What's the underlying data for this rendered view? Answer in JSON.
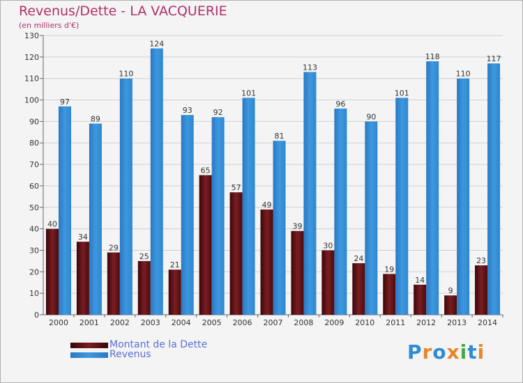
{
  "header": {
    "title": "Revenus/Dette - LA VACQUERIE",
    "subtitle": "(en milliers d'€)"
  },
  "logo": {
    "text": "Proxiti",
    "letters": [
      {
        "ch": "P",
        "color": "#2e8bd6"
      },
      {
        "ch": "r",
        "color": "#e8862a"
      },
      {
        "ch": "o",
        "color": "#2e8bd6"
      },
      {
        "ch": "x",
        "color": "#e8862a"
      },
      {
        "ch": "i",
        "color": "#45a845"
      },
      {
        "ch": "t",
        "color": "#2e8bd6"
      },
      {
        "ch": "i",
        "color": "#e8862a"
      }
    ]
  },
  "colors": {
    "debt": "#7a1e22",
    "revenue": "#3d98df",
    "axis_text": "#333333",
    "grid": "#d0d0d0"
  },
  "chart_data": {
    "type": "bar",
    "title": "Revenus/Dette - LA VACQUERIE",
    "subtitle": "(en milliers d'€)",
    "categories": [
      "2000",
      "2001",
      "2002",
      "2003",
      "2004",
      "2005",
      "2006",
      "2007",
      "2008",
      "2009",
      "2010",
      "2011",
      "2012",
      "2013",
      "2014"
    ],
    "series": [
      {
        "name": "Montant de la Dette",
        "values": [
          40,
          34,
          29,
          25,
          21,
          65,
          57,
          49,
          39,
          30,
          24,
          19,
          14,
          9,
          23
        ]
      },
      {
        "name": "Revenus",
        "values": [
          97,
          89,
          110,
          124,
          93,
          92,
          101,
          81,
          113,
          96,
          90,
          101,
          118,
          110,
          117
        ]
      }
    ],
    "ylim": [
      0,
      130
    ],
    "yticks": [
      0,
      10,
      20,
      30,
      40,
      50,
      60,
      70,
      80,
      90,
      100,
      110,
      120,
      130
    ],
    "grid": true,
    "legend_position": "bottom-left"
  }
}
